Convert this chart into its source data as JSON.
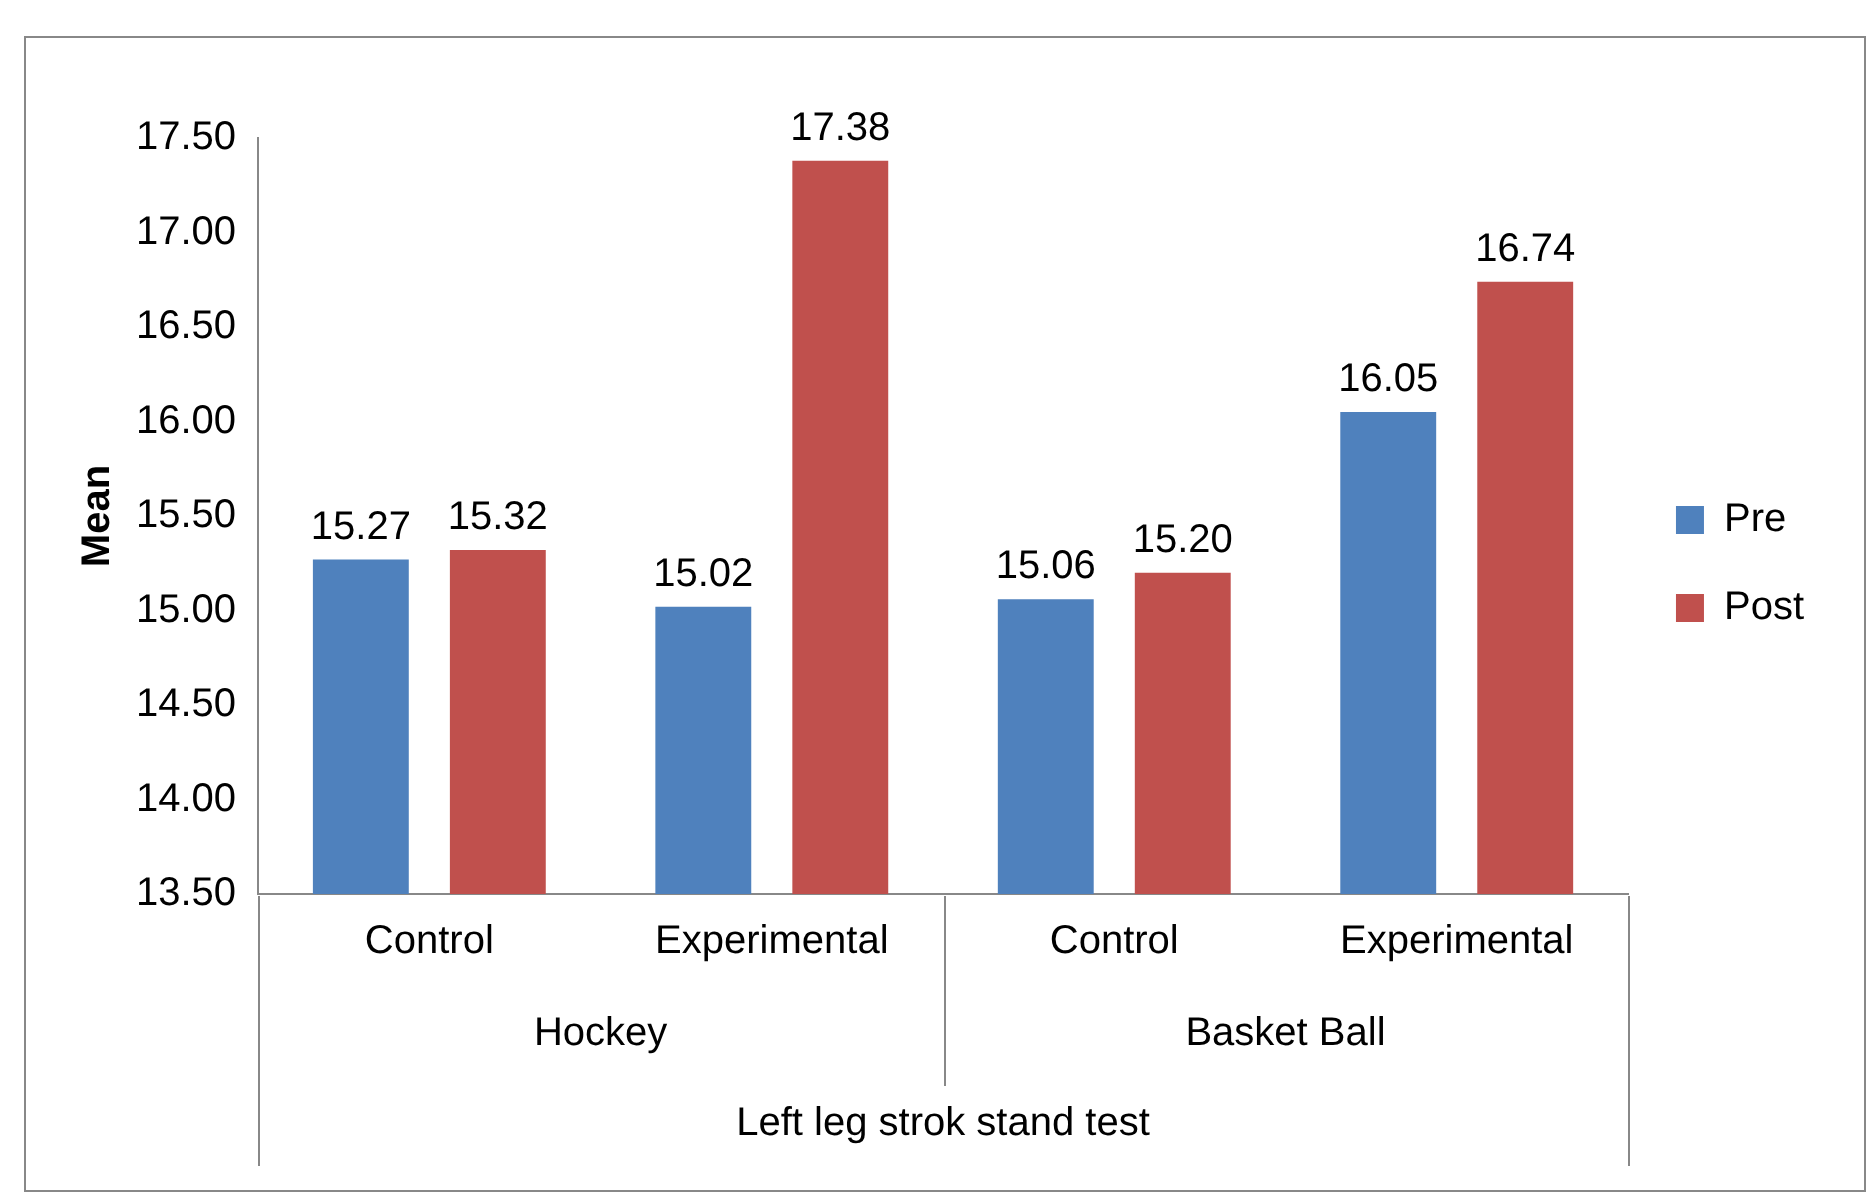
{
  "chart_data": {
    "type": "bar",
    "ylabel": "Mean",
    "xlabel": "Left leg strok stand test",
    "categories": [
      "Control",
      "Experimental",
      "Control",
      "Experimental"
    ],
    "annotations": [
      "Hockey",
      "Basket Ball"
    ],
    "series": [
      {
        "name": "Pre",
        "color": "#4f81bd",
        "values": [
          15.27,
          15.02,
          15.06,
          16.05
        ],
        "value_labels": [
          "15.27",
          "15.02",
          "15.06",
          "16.05"
        ]
      },
      {
        "name": "Post",
        "color": "#c0504d",
        "values": [
          15.32,
          17.38,
          15.2,
          16.74
        ],
        "value_labels": [
          "15.32",
          "17.38",
          "15.20",
          "16.74"
        ]
      }
    ],
    "ylim": [
      13.5,
      17.5
    ],
    "yticks": [
      {
        "value": 13.5,
        "label": "13.50"
      },
      {
        "value": 14,
        "label": "14.00"
      },
      {
        "value": 14.5,
        "label": "14.50"
      },
      {
        "value": 15,
        "label": "15.00"
      },
      {
        "value": 15.5,
        "label": "15.50"
      },
      {
        "value": 16,
        "label": "16.00"
      },
      {
        "value": 16.5,
        "label": "16.50"
      },
      {
        "value": 17,
        "label": "17.00"
      },
      {
        "value": 17.5,
        "label": "17.50"
      }
    ],
    "grid": false,
    "legend": "right"
  }
}
